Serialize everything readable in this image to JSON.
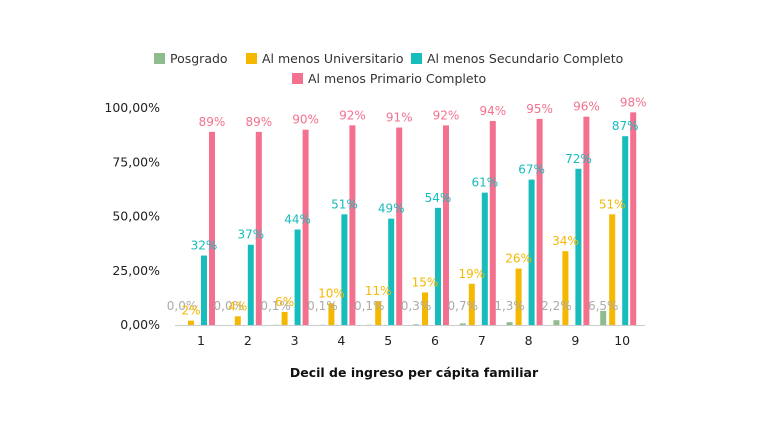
{
  "chart_data": {
    "type": "bar",
    "title": "",
    "xlabel": "Decil de ingreso per cápita familiar",
    "ylabel": "",
    "ylim": [
      0,
      100
    ],
    "yticks": [
      "0,00%",
      "25,00%",
      "50,00%",
      "75,00%",
      "100,00%"
    ],
    "ytick_values": [
      0,
      25,
      50,
      75,
      100
    ],
    "grid": false,
    "legend_position": "top",
    "categories": [
      "1",
      "2",
      "3",
      "4",
      "5",
      "6",
      "7",
      "8",
      "9",
      "10"
    ],
    "series": [
      {
        "name": "Posgrado",
        "color": "#8fbc8f",
        "label_color": "#aaaaaa",
        "values": [
          0.0,
          0.0,
          0.1,
          0.1,
          0.1,
          0.3,
          0.7,
          1.3,
          2.2,
          6.5
        ],
        "labels": [
          "0,0%",
          "0,0%",
          "0,1%",
          "0,1%",
          "0,1%",
          "0,3%",
          "0,7%",
          "1,3%",
          "2,2%",
          "6,5%"
        ]
      },
      {
        "name": "Al menos Universitario",
        "color": "#f5b800",
        "label_color": "#f5b800",
        "values": [
          2,
          4,
          6,
          10,
          11,
          15,
          19,
          26,
          34,
          51
        ],
        "labels": [
          "2%",
          "4%",
          "6%",
          "10%",
          "11%",
          "15%",
          "19%",
          "26%",
          "34%",
          "51%"
        ]
      },
      {
        "name": "Al menos Secundario Completo",
        "color": "#17bcbc",
        "label_color": "#17bcbc",
        "values": [
          32,
          37,
          44,
          51,
          49,
          54,
          61,
          67,
          72,
          87
        ],
        "labels": [
          "32%",
          "37%",
          "44%",
          "51%",
          "49%",
          "54%",
          "61%",
          "67%",
          "72%",
          "87%"
        ]
      },
      {
        "name": "Al menos Primario Completo",
        "color": "#f3718e",
        "label_color": "#f3718e",
        "values": [
          89,
          89,
          90,
          92,
          91,
          92,
          94,
          95,
          96,
          98
        ],
        "labels": [
          "89%",
          "89%",
          "90%",
          "92%",
          "91%",
          "92%",
          "94%",
          "95%",
          "96%",
          "98%"
        ]
      }
    ]
  }
}
